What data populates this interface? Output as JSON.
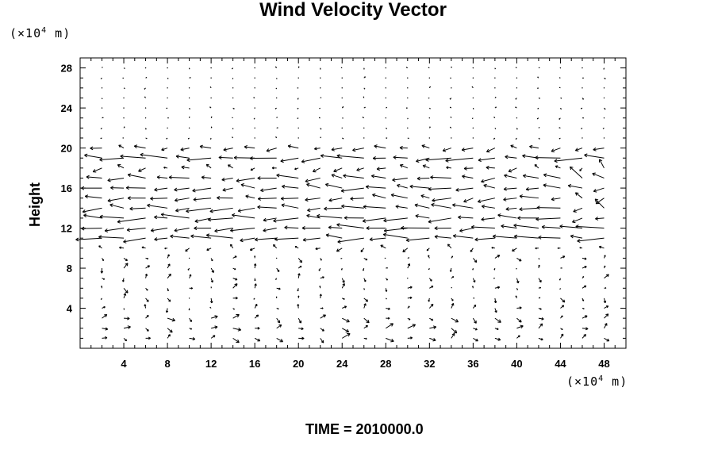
{
  "chart_data": {
    "type": "vector-field",
    "title": "Wind Velocity Vector",
    "xlabel": "",
    "ylabel": "Height",
    "x_unit": {
      "prefix": "(×10",
      "exp": "4",
      "suffix": " m)"
    },
    "y_unit": {
      "prefix": "(×10",
      "exp": "4",
      "suffix": " m)"
    },
    "xlim": [
      0,
      50
    ],
    "ylim": [
      0,
      29
    ],
    "x_ticks": [
      4,
      8,
      12,
      16,
      20,
      24,
      28,
      32,
      36,
      40,
      44,
      48
    ],
    "y_ticks": [
      4,
      8,
      12,
      16,
      20,
      24,
      28
    ],
    "grid": false,
    "annotation": "TIME = 2010000.0",
    "vector_grid": {
      "x_values": [
        0,
        2,
        4,
        6,
        8,
        10,
        12,
        14,
        16,
        18,
        20,
        22,
        24,
        26,
        28,
        30,
        32,
        34,
        36,
        38,
        40,
        42,
        44,
        46,
        48,
        50
      ],
      "jet_rows": [
        {
          "y": 20,
          "u": -0.8
        },
        {
          "y": 19,
          "u": -1.9
        },
        {
          "y": 18,
          "u": -0.6
        },
        {
          "y": 17,
          "u": -1.5
        },
        {
          "y": 16,
          "u": -1.6
        },
        {
          "y": 15,
          "u": -1.3
        },
        {
          "y": 14,
          "u": -1.7
        },
        {
          "y": 13,
          "u": -1.9
        },
        {
          "y": 12,
          "u": -2.0
        },
        {
          "y": 11,
          "u": -1.8
        },
        {
          "y": 10,
          "u": -0.4
        }
      ]
    }
  }
}
